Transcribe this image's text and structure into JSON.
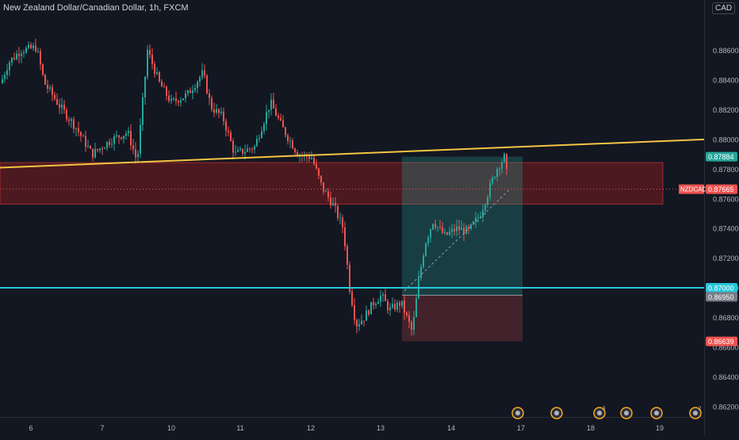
{
  "header": {
    "title": "New Zealand Dollar/Canadian Dollar, 1h, FXCM",
    "currency": "CAD"
  },
  "chart_data": {
    "type": "candlestick",
    "title": "New Zealand Dollar/Canadian Dollar, 1h, FXCM",
    "x_ticks": [
      "6",
      "7",
      "10",
      "11",
      "12",
      "13",
      "14",
      "17",
      "18",
      "19"
    ],
    "y_ticks": [
      "0.88600",
      "0.88400",
      "0.88200",
      "0.88000",
      "0.87800",
      "0.87600",
      "0.87400",
      "0.87200",
      "0.87000",
      "0.86800",
      "0.86600",
      "0.86400",
      "0.86200"
    ],
    "ylim": [
      0.8614,
      0.8894
    ],
    "grid": false,
    "price_labels": [
      {
        "text": "0.87884",
        "value": 0.87884,
        "color": "#26a69a"
      },
      {
        "text": "NZDCAD",
        "value": 0.87665,
        "color": "#ef5350"
      },
      {
        "text": "0.87665",
        "value": 0.87665,
        "color": "#ef5350"
      },
      {
        "text": "0.87000",
        "value": 0.87,
        "color": "#26c6da"
      },
      {
        "text": "0.86950",
        "value": 0.8695,
        "color": "#787b86"
      },
      {
        "text": "0.86639",
        "value": 0.86639,
        "color": "#ef5350"
      }
    ],
    "horizontal_line": {
      "value": 0.87,
      "color": "#26c6da"
    },
    "trend_line": {
      "start_value": 0.8781,
      "end_value": 0.88,
      "color": "#f5c542"
    },
    "zone": {
      "from": 0.87564,
      "to": 0.87844,
      "color": "#b71c1c"
    },
    "position": {
      "entry": 0.8695,
      "target": 0.87884,
      "stop": 0.86639
    },
    "event_badges": [
      "",
      "",
      "3",
      "",
      "",
      "2",
      "",
      "2",
      ""
    ]
  }
}
